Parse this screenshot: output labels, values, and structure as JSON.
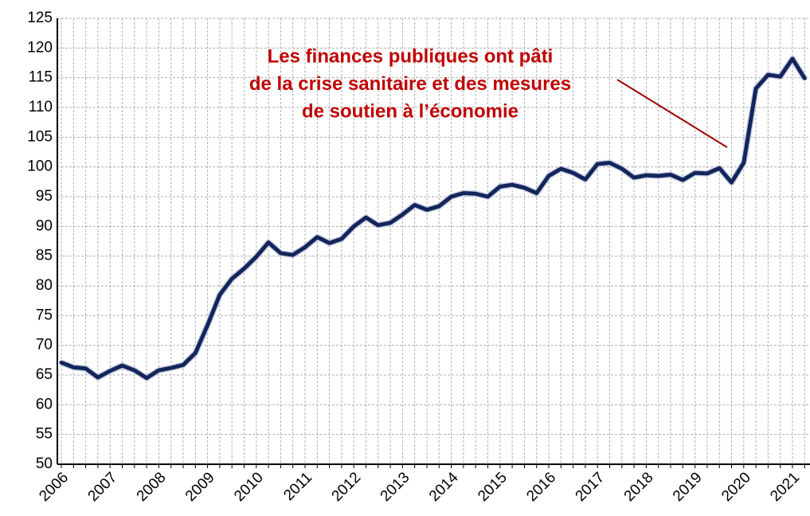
{
  "chart_data": {
    "type": "line",
    "categories": [
      "2006",
      null,
      null,
      null,
      "2007",
      null,
      null,
      null,
      "2008",
      null,
      null,
      null,
      "2009",
      null,
      null,
      null,
      "2010",
      null,
      null,
      null,
      "2011",
      null,
      null,
      null,
      "2012",
      null,
      null,
      null,
      "2013",
      null,
      null,
      null,
      "2014",
      null,
      null,
      null,
      "2015",
      null,
      null,
      null,
      "2016",
      null,
      null,
      null,
      "2017",
      null,
      null,
      null,
      "2018",
      null,
      null,
      null,
      "2019",
      null,
      null,
      null,
      "2020",
      null,
      null,
      null,
      "2021",
      null
    ],
    "values": [
      67.1,
      66.3,
      66.1,
      64.6,
      65.7,
      66.6,
      65.8,
      64.5,
      65.8,
      66.2,
      66.7,
      68.7,
      73.4,
      78.5,
      81.2,
      82.9,
      84.9,
      87.3,
      85.5,
      85.2,
      86.5,
      88.2,
      87.2,
      87.9,
      90.0,
      91.5,
      90.2,
      90.6,
      92.0,
      93.6,
      92.8,
      93.4,
      95.0,
      95.6,
      95.5,
      95.0,
      96.7,
      97.0,
      96.5,
      95.6,
      98.5,
      99.7,
      99.0,
      97.9,
      100.5,
      100.7,
      99.7,
      98.2,
      98.6,
      98.5,
      98.7,
      97.8,
      99.0,
      98.9,
      99.8,
      97.4,
      100.7,
      113.2,
      115.5,
      115.2,
      118.2,
      114.9
    ],
    "color": "#13255a",
    "ylim": [
      50,
      125
    ],
    "yticks": [
      50,
      55,
      60,
      65,
      70,
      75,
      80,
      85,
      90,
      95,
      100,
      105,
      110,
      115,
      120,
      125
    ],
    "grid": true,
    "annotation": [
      "Les finances publiques ont pâti",
      "de la crise sanitaire et des mesures",
      "de soutien à l’économie"
    ],
    "annotation_color": "#c00000"
  }
}
